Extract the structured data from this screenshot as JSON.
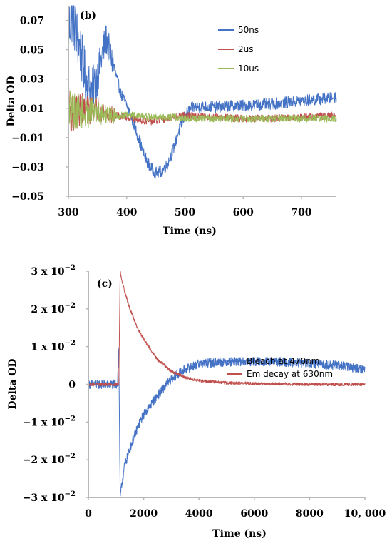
{
  "chart_data": [
    {
      "type": "line",
      "panel_label": "(b)",
      "xlabel": "Time (ns)",
      "ylabel": "Delta OD",
      "xlim": [
        300,
        760
      ],
      "ylim": [
        -0.05,
        0.08
      ],
      "xticks": [
        300,
        400,
        500,
        600,
        700
      ],
      "xtick_labels": [
        "300",
        "400",
        "500",
        "600",
        "700"
      ],
      "yticks": [
        0.07,
        0.05,
        0.03,
        0.01,
        -0.01,
        -0.03,
        -0.05
      ],
      "ytick_labels": [
        "0.07",
        "0.05",
        "0.03",
        "0.01",
        "−0.01",
        "−0.03",
        "−0.05"
      ],
      "grid": false,
      "legend": "top-right",
      "series": [
        {
          "name": "50ns",
          "color": "#4472c4",
          "noise": 0.004,
          "x": [
            300,
            305,
            310,
            320,
            330,
            340,
            350,
            360,
            365,
            370,
            380,
            390,
            400,
            410,
            420,
            430,
            440,
            450,
            460,
            470,
            480,
            490,
            500,
            510,
            520,
            550,
            600,
            650,
            700,
            750,
            760
          ],
          "y": [
            0.06,
            0.075,
            0.068,
            0.05,
            0.03,
            0.022,
            0.032,
            0.05,
            0.058,
            0.05,
            0.035,
            0.02,
            0.012,
            0.002,
            -0.01,
            -0.022,
            -0.03,
            -0.034,
            -0.033,
            -0.028,
            -0.018,
            -0.005,
            0.005,
            0.01,
            0.011,
            0.011,
            0.012,
            0.013,
            0.015,
            0.017,
            0.018
          ]
        },
        {
          "name": "2us",
          "color": "#c0504d",
          "noise": 0.0025,
          "x": [
            300,
            310,
            320,
            330,
            340,
            350,
            360,
            370,
            380,
            400,
            420,
            440,
            460,
            480,
            500,
            550,
            600,
            650,
            700,
            750,
            760
          ],
          "y": [
            0.01,
            0.005,
            0.01,
            0.008,
            0.009,
            0.01,
            0.008,
            0.006,
            0.005,
            0.004,
            0.002,
            0.001,
            0.002,
            0.004,
            0.005,
            0.004,
            0.003,
            0.003,
            0.004,
            0.005,
            0.005
          ]
        },
        {
          "name": "10us",
          "color": "#9bbb59",
          "noise": 0.0025,
          "x": [
            300,
            310,
            320,
            330,
            340,
            350,
            360,
            370,
            380,
            400,
            420,
            440,
            460,
            480,
            500,
            550,
            600,
            650,
            700,
            750,
            760
          ],
          "y": [
            0.01,
            0.008,
            0.008,
            0.006,
            0.008,
            0.008,
            0.006,
            0.006,
            0.005,
            0.005,
            0.005,
            0.004,
            0.004,
            0.004,
            0.003,
            0.003,
            0.003,
            0.003,
            0.003,
            0.003,
            0.003
          ]
        }
      ]
    },
    {
      "type": "line",
      "panel_label": "(c)",
      "xlabel": "Time (ns)",
      "ylabel": "Delta OD",
      "xlim": [
        0,
        10000
      ],
      "ylim": [
        -0.03,
        0.03
      ],
      "xticks": [
        0,
        2000,
        4000,
        6000,
        8000,
        10000
      ],
      "xtick_labels": [
        "0",
        "2000",
        "4000",
        "6000",
        "8000",
        "10, 000"
      ],
      "yticks": [
        0.03,
        0.02,
        0.01,
        0,
        -0.01,
        -0.02,
        -0.03
      ],
      "ytick_labels": [
        {
          "coef": "3 x 10",
          "exp": "−2"
        },
        {
          "coef": "2 x 10",
          "exp": "−2"
        },
        {
          "coef": "1 x 10",
          "exp": "−2"
        },
        {
          "coef": "0",
          "exp": ""
        },
        {
          "coef": "−1 x 10",
          "exp": "−2"
        },
        {
          "coef": "−2 x 10",
          "exp": "−2"
        },
        {
          "coef": "−3 x 10",
          "exp": "−2"
        }
      ],
      "grid": false,
      "legend": "right",
      "series": [
        {
          "name": "Bleach at 470nm",
          "color": "#4472c4",
          "noise": 0.0012,
          "x": [
            0,
            500,
            1000,
            1050,
            1100,
            1150,
            1200,
            1300,
            1500,
            1800,
            2000,
            2500,
            3000,
            3500,
            4000,
            5000,
            6000,
            7000,
            8000,
            9000,
            10000
          ],
          "y": [
            0,
            0,
            0,
            0,
            0.009,
            -0.03,
            -0.027,
            -0.022,
            -0.017,
            -0.011,
            -0.008,
            -0.003,
            0.0015,
            0.004,
            0.0055,
            0.006,
            0.006,
            0.006,
            0.0055,
            0.005,
            0.004
          ]
        },
        {
          "name": "Em decay at 630nm",
          "color": "#c0504d",
          "noise": 0.0004,
          "x": [
            0,
            500,
            1000,
            1100,
            1150,
            1200,
            1300,
            1500,
            1800,
            2000,
            2500,
            3000,
            3500,
            4000,
            5000,
            6000,
            7000,
            8000,
            9000,
            10000
          ],
          "y": [
            0,
            0,
            0,
            0,
            0.03,
            0.028,
            0.025,
            0.02,
            0.0145,
            0.012,
            0.0065,
            0.0035,
            0.0018,
            0.001,
            0.0004,
            0.0002,
            0.0001,
            0,
            0,
            0
          ]
        }
      ]
    }
  ]
}
